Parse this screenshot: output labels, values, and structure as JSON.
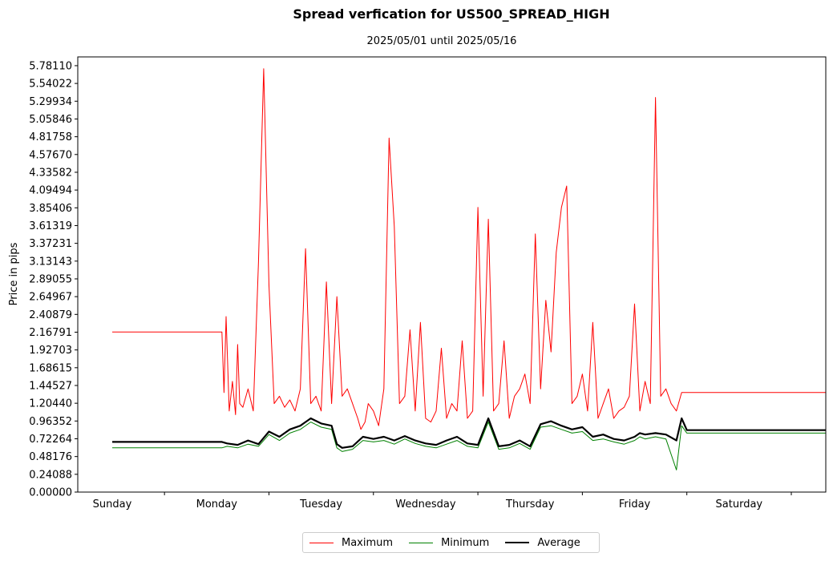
{
  "chart_data": {
    "type": "line",
    "title": "Spread verfication for US500_SPREAD_HIGH",
    "subtitle": "2025/05/01 until 2025/05/16",
    "ylabel": "Price in pips",
    "xlabel": "",
    "ylim": [
      0,
      5.9
    ],
    "xlim": [
      -0.33,
      6.83
    ],
    "categories": [
      "Sunday",
      "Monday",
      "Tuesday",
      "Wednesday",
      "Thursday",
      "Friday",
      "Saturday"
    ],
    "category_tick_positions": [
      0,
      1,
      2,
      3,
      4,
      5,
      6
    ],
    "yticks": [
      "0.00000",
      "0.24088",
      "0.48176",
      "0.72264",
      "0.96352",
      "1.20440",
      "1.44527",
      "1.68615",
      "1.92703",
      "2.16791",
      "2.40879",
      "2.64967",
      "2.89055",
      "3.13143",
      "3.37231",
      "3.61319",
      "3.85406",
      "4.09494",
      "4.33582",
      "4.57670",
      "4.81758",
      "5.05846",
      "5.29934",
      "5.54022",
      "5.78110"
    ],
    "grid": false,
    "legend_position": "bottom-center",
    "series": [
      {
        "name": "Maximum",
        "color": "#ff0000",
        "x": [
          0.0,
          0.8,
          1.05,
          1.07,
          1.09,
          1.12,
          1.15,
          1.18,
          1.2,
          1.22,
          1.25,
          1.3,
          1.35,
          1.4,
          1.45,
          1.5,
          1.55,
          1.6,
          1.65,
          1.7,
          1.75,
          1.8,
          1.85,
          1.9,
          1.95,
          2.0,
          2.05,
          2.1,
          2.15,
          2.2,
          2.25,
          2.3,
          2.35,
          2.38,
          2.42,
          2.45,
          2.5,
          2.55,
          2.6,
          2.65,
          2.7,
          2.75,
          2.8,
          2.85,
          2.9,
          2.95,
          3.0,
          3.05,
          3.1,
          3.15,
          3.2,
          3.25,
          3.3,
          3.35,
          3.4,
          3.45,
          3.5,
          3.55,
          3.6,
          3.65,
          3.7,
          3.75,
          3.8,
          3.85,
          3.9,
          3.95,
          4.0,
          4.05,
          4.1,
          4.15,
          4.2,
          4.25,
          4.3,
          4.35,
          4.4,
          4.45,
          4.5,
          4.55,
          4.6,
          4.65,
          4.7,
          4.75,
          4.8,
          4.85,
          4.9,
          4.95,
          5.0,
          5.05,
          5.1,
          5.15,
          5.2,
          5.25,
          5.3,
          5.35,
          5.4,
          5.45,
          5.5,
          5.55,
          5.6,
          5.65,
          5.7,
          5.75,
          5.8,
          6.0,
          6.5,
          6.83
        ],
        "y": [
          2.17,
          2.17,
          2.17,
          1.35,
          2.38,
          1.1,
          1.5,
          1.05,
          2.0,
          1.2,
          1.15,
          1.4,
          1.1,
          3.12,
          5.74,
          2.8,
          1.2,
          1.3,
          1.15,
          1.25,
          1.1,
          1.4,
          3.3,
          1.2,
          1.3,
          1.1,
          2.85,
          1.2,
          2.65,
          1.3,
          1.4,
          1.2,
          1.0,
          0.85,
          0.95,
          1.2,
          1.1,
          0.9,
          1.4,
          4.8,
          3.6,
          1.2,
          1.3,
          2.2,
          1.1,
          2.3,
          1.0,
          0.95,
          1.1,
          1.95,
          1.0,
          1.2,
          1.1,
          2.05,
          1.0,
          1.1,
          3.86,
          1.3,
          3.7,
          1.1,
          1.2,
          2.05,
          1.0,
          1.3,
          1.4,
          1.6,
          1.2,
          3.5,
          1.4,
          2.6,
          1.9,
          3.25,
          3.86,
          4.15,
          1.2,
          1.3,
          1.6,
          1.1,
          2.3,
          1.0,
          1.2,
          1.4,
          1.0,
          1.1,
          1.15,
          1.3,
          2.55,
          1.1,
          1.5,
          1.2,
          5.35,
          1.3,
          1.4,
          1.2,
          1.1,
          1.35,
          1.35,
          1.35,
          1.35,
          1.35,
          1.35,
          1.35,
          1.35,
          1.35,
          1.35,
          1.35
        ]
      },
      {
        "name": "Minimum",
        "color": "#008000",
        "x": [
          0.0,
          0.8,
          1.05,
          1.1,
          1.2,
          1.3,
          1.4,
          1.5,
          1.6,
          1.7,
          1.8,
          1.9,
          2.0,
          2.1,
          2.15,
          2.2,
          2.3,
          2.4,
          2.5,
          2.6,
          2.7,
          2.8,
          2.9,
          3.0,
          3.1,
          3.2,
          3.3,
          3.4,
          3.5,
          3.6,
          3.7,
          3.8,
          3.9,
          4.0,
          4.1,
          4.2,
          4.3,
          4.4,
          4.5,
          4.6,
          4.7,
          4.8,
          4.9,
          5.0,
          5.05,
          5.1,
          5.2,
          5.3,
          5.4,
          5.45,
          5.5,
          6.0,
          6.5,
          6.83
        ],
        "y": [
          0.6,
          0.6,
          0.6,
          0.62,
          0.6,
          0.65,
          0.62,
          0.78,
          0.7,
          0.8,
          0.85,
          0.95,
          0.88,
          0.85,
          0.6,
          0.55,
          0.58,
          0.7,
          0.68,
          0.7,
          0.65,
          0.72,
          0.66,
          0.62,
          0.6,
          0.65,
          0.7,
          0.62,
          0.6,
          0.95,
          0.58,
          0.6,
          0.66,
          0.58,
          0.88,
          0.9,
          0.85,
          0.8,
          0.82,
          0.7,
          0.72,
          0.68,
          0.65,
          0.7,
          0.75,
          0.72,
          0.75,
          0.72,
          0.3,
          0.9,
          0.8,
          0.8,
          0.8,
          0.8
        ]
      },
      {
        "name": "Average",
        "color": "#000000",
        "x": [
          0.0,
          0.8,
          1.05,
          1.1,
          1.2,
          1.3,
          1.4,
          1.5,
          1.6,
          1.7,
          1.8,
          1.9,
          2.0,
          2.1,
          2.15,
          2.2,
          2.3,
          2.4,
          2.5,
          2.6,
          2.7,
          2.8,
          2.9,
          3.0,
          3.1,
          3.2,
          3.3,
          3.4,
          3.5,
          3.6,
          3.7,
          3.8,
          3.9,
          4.0,
          4.1,
          4.2,
          4.3,
          4.4,
          4.5,
          4.6,
          4.7,
          4.8,
          4.9,
          5.0,
          5.05,
          5.1,
          5.2,
          5.3,
          5.4,
          5.45,
          5.5,
          6.0,
          6.5,
          6.83
        ],
        "y": [
          0.68,
          0.68,
          0.68,
          0.66,
          0.64,
          0.7,
          0.65,
          0.82,
          0.75,
          0.85,
          0.9,
          1.0,
          0.93,
          0.9,
          0.65,
          0.6,
          0.62,
          0.75,
          0.72,
          0.75,
          0.7,
          0.76,
          0.7,
          0.66,
          0.64,
          0.7,
          0.75,
          0.66,
          0.64,
          1.0,
          0.62,
          0.64,
          0.7,
          0.62,
          0.92,
          0.96,
          0.9,
          0.85,
          0.88,
          0.75,
          0.78,
          0.72,
          0.7,
          0.75,
          0.8,
          0.78,
          0.8,
          0.78,
          0.7,
          1.0,
          0.84,
          0.84,
          0.84,
          0.84
        ]
      }
    ]
  }
}
